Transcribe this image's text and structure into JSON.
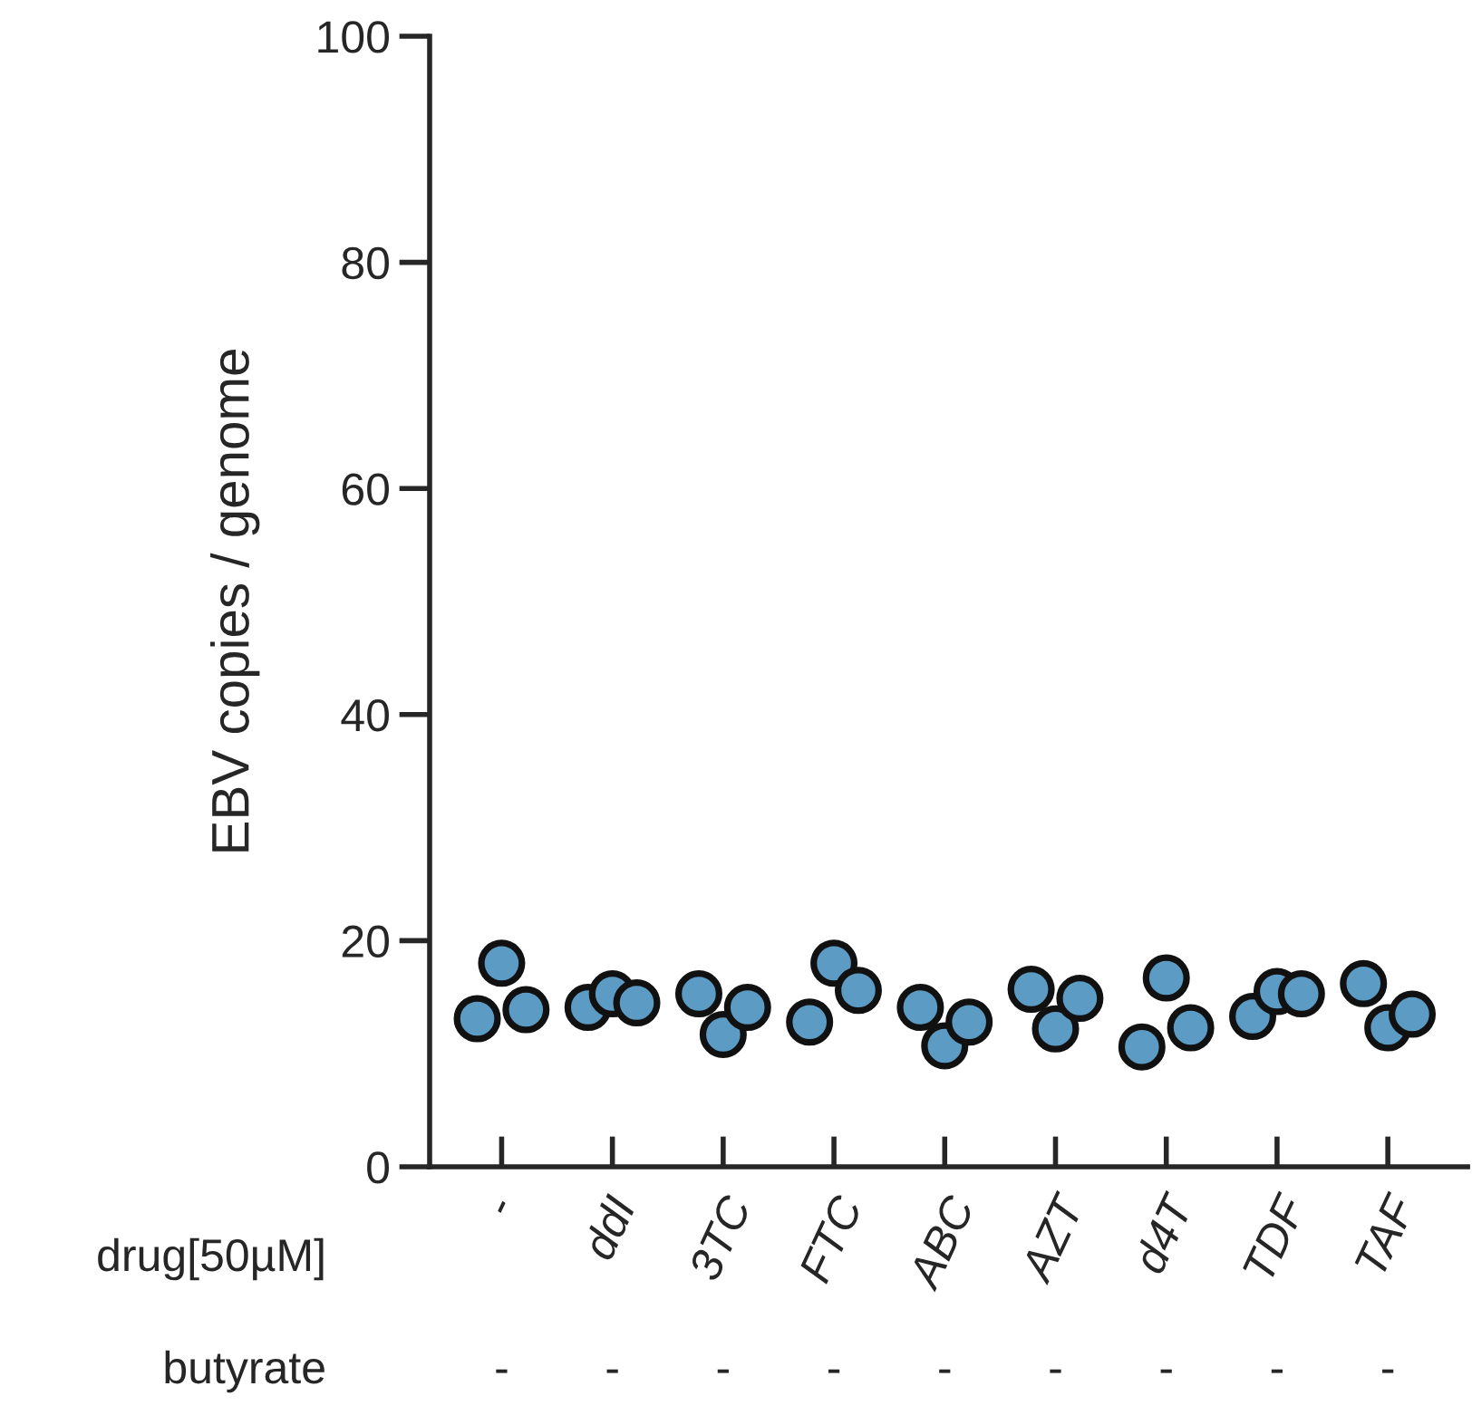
{
  "chart_data": {
    "type": "scatter",
    "ylabel": "EBV copies / genome",
    "xlabel": "drug[50µM]",
    "categories": [
      "-",
      "ddI",
      "3TC",
      "FTC",
      "ABC",
      "AZT",
      "d4T",
      "TDF",
      "TAF"
    ],
    "series": [
      {
        "color": "#5b9bc4",
        "values": [
          13.1,
          14.1,
          15.3,
          12.8,
          14.1,
          15.7,
          10.6,
          13.3,
          16.2
        ]
      },
      {
        "color": "#5b9bc4",
        "values": [
          18.0,
          15.3,
          11.7,
          18.0,
          10.7,
          12.2,
          16.7,
          15.5,
          12.3
        ]
      },
      {
        "color": "#5b9bc4",
        "values": [
          13.9,
          14.5,
          14.1,
          15.6,
          12.8,
          14.9,
          12.3,
          15.3,
          13.5
        ]
      }
    ],
    "ylim": [
      0,
      100
    ],
    "yticks": [
      0,
      20,
      40,
      60,
      80,
      100
    ],
    "marker": "circle",
    "grid": false,
    "legend": false,
    "annotations": [
      "butyrate",
      "-",
      "-",
      "-",
      "-",
      "-",
      "-",
      "-",
      "-",
      "-"
    ]
  }
}
